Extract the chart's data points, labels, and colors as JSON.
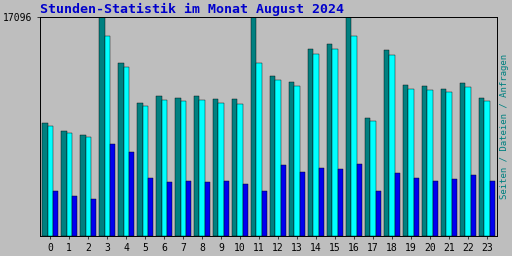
{
  "title": "Stunden-Statistik im Monat August 2024",
  "title_color": "#0000cc",
  "background_color": "#bebebe",
  "plot_bg_color": "#bebebe",
  "ylabel_right": "Seiten / Dateien / Anfragen",
  "ylabel_right_color": "#008080",
  "hours": [
    0,
    1,
    2,
    3,
    4,
    5,
    6,
    7,
    8,
    9,
    10,
    11,
    12,
    13,
    14,
    15,
    16,
    17,
    18,
    19,
    20,
    21,
    22,
    23
  ],
  "bar1_color": "#008080",
  "bar2_color": "#00ffff",
  "bar3_color": "#0000ee",
  "bar1_values": [
    8800,
    8200,
    7900,
    17096,
    13500,
    10400,
    10900,
    10800,
    10900,
    10700,
    10700,
    17096,
    12500,
    12000,
    14600,
    15000,
    17096,
    9200,
    14500,
    11800,
    11700,
    11500,
    11900,
    10800
  ],
  "bar2_values": [
    8600,
    8000,
    7700,
    15600,
    13200,
    10100,
    10600,
    10500,
    10600,
    10400,
    10300,
    13500,
    12200,
    11700,
    14200,
    14600,
    15600,
    9000,
    14100,
    11500,
    11400,
    11200,
    11600,
    10500
  ],
  "bar3_values": [
    3500,
    3100,
    2900,
    7200,
    6500,
    4500,
    4200,
    4300,
    4200,
    4300,
    4000,
    3500,
    5500,
    5000,
    5300,
    5200,
    5600,
    3500,
    4900,
    4500,
    4300,
    4400,
    4700,
    4300
  ],
  "ymax": 17096,
  "bar_width": 0.28,
  "font": "monospace"
}
